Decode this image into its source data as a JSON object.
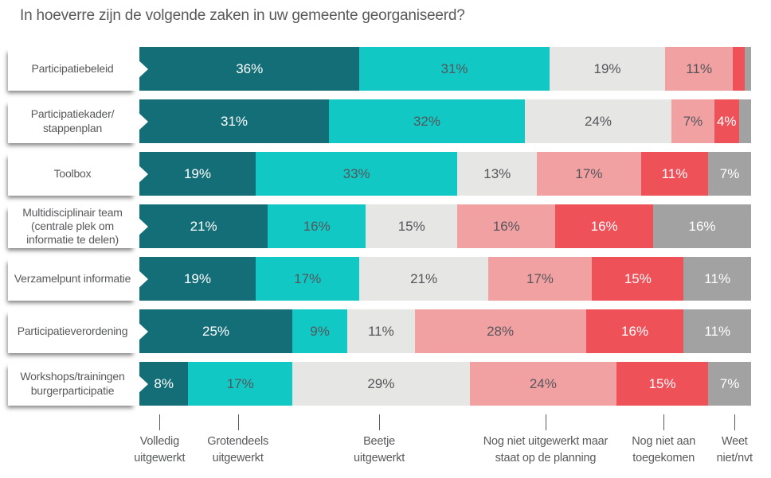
{
  "chart_data": {
    "type": "bar",
    "subtype": "horizontal-stacked-100pct",
    "title": "In hoeverre zijn de volgende zaken in uw gemeente georganiseerd?",
    "unit": "%",
    "xlim": [
      0,
      100
    ],
    "grid": false,
    "legend_position": "bottom",
    "legend": [
      {
        "name": "Volledig uitgewerkt",
        "wrapped": "Volledig\nuitgewerkt",
        "color": "#146e78",
        "text_color": "#ffffff",
        "tick_pct": 3.3
      },
      {
        "name": "Grotendeels uitgewerkt",
        "wrapped": "Grotendeels\nuitgewerkt",
        "color": "#12c8c5",
        "text_color": "#55565a",
        "tick_pct": 16.1
      },
      {
        "name": "Beetje uitgewerkt",
        "wrapped": "Beetje\nuitgewerkt",
        "color": "#e6e6e5",
        "text_color": "#55565a",
        "tick_pct": 39.2
      },
      {
        "name": "Nog niet uitgewerkt maar staat op de planning",
        "wrapped": "Nog niet uitgewerkt maar\nstaat op de planning",
        "color": "#f2a1a3",
        "text_color": "#55565a",
        "tick_pct": 66.4
      },
      {
        "name": "Nog niet aan toegekomen",
        "wrapped": "Nog niet aan\ntoegekomen",
        "color": "#ef5159",
        "text_color": "#ffffff",
        "tick_pct": 85.7
      },
      {
        "name": "Weet niet/nvt",
        "wrapped": "Weet\nniet/nvt",
        "color": "#a3a2a2",
        "text_color": "#ffffff",
        "tick_pct": 97.3
      }
    ],
    "rows": [
      {
        "label": "Participatiebeleid",
        "values": [
          36,
          31,
          19,
          11,
          2,
          1
        ],
        "labels": [
          "36%",
          "31%",
          "19%",
          "11%",
          "",
          ""
        ]
      },
      {
        "label": "Participatiekader/\nstappenplan",
        "values": [
          31,
          32,
          24,
          7,
          4,
          2
        ],
        "labels": [
          "31%",
          "32%",
          "24%",
          "7%",
          "4%",
          ""
        ]
      },
      {
        "label": "Toolbox",
        "values": [
          19,
          33,
          13,
          17,
          11,
          7
        ],
        "labels": [
          "19%",
          "33%",
          "13%",
          "17%",
          "11%",
          "7%"
        ]
      },
      {
        "label": "Multidisciplinair team\n(centrale plek om\ninformatie te delen)",
        "values": [
          21,
          16,
          15,
          16,
          16,
          16
        ],
        "labels": [
          "21%",
          "16%",
          "15%",
          "16%",
          "16%",
          "16%"
        ]
      },
      {
        "label": "Verzamelpunt informatie",
        "values": [
          19,
          17,
          21,
          17,
          15,
          11
        ],
        "labels": [
          "19%",
          "17%",
          "21%",
          "17%",
          "15%",
          "11%"
        ]
      },
      {
        "label": "Participatieverordening",
        "values": [
          25,
          9,
          11,
          28,
          16,
          11
        ],
        "labels": [
          "25%",
          "9%",
          "11%",
          "28%",
          "16%",
          "11%"
        ]
      },
      {
        "label": "Workshops/trainingen\nburgerparticipatie",
        "values": [
          8,
          17,
          29,
          24,
          15,
          7
        ],
        "labels": [
          "8%",
          "17%",
          "29%",
          "24%",
          "15%",
          "7%"
        ]
      }
    ]
  }
}
